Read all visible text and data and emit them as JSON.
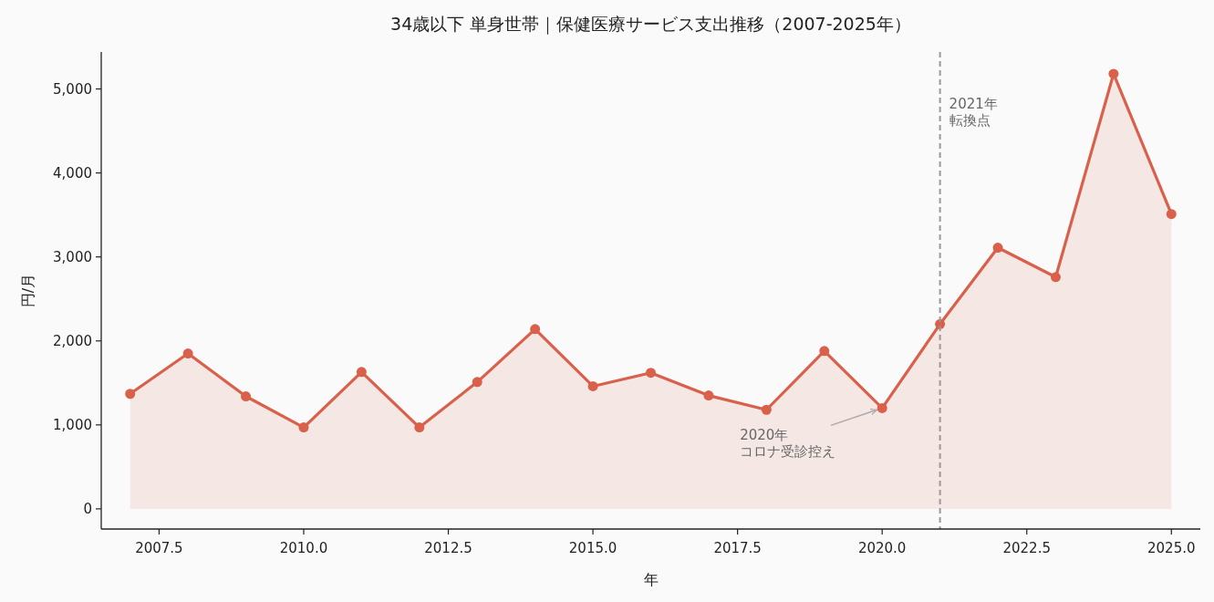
{
  "chart_data": {
    "type": "area",
    "title": "34歳以下 単身世帯｜保健医療サービス支出推移（2007-2025年）",
    "xlabel": "年",
    "ylabel": "円/月",
    "x": [
      2007,
      2008,
      2009,
      2010,
      2011,
      2012,
      2013,
      2014,
      2015,
      2016,
      2017,
      2018,
      2019,
      2020,
      2021,
      2022,
      2023,
      2024,
      2025
    ],
    "series": [
      {
        "color": "#d9604a",
        "values": [
          1370,
          1850,
          1340,
          970,
          1630,
          970,
          1510,
          2140,
          1460,
          1620,
          1350,
          1180,
          1880,
          1200,
          2200,
          3110,
          2760,
          5180,
          3510
        ]
      }
    ],
    "marker": "circle",
    "line_style": "solid",
    "xlim": [
      2006.5,
      2025.5
    ],
    "xticks": [
      2007.5,
      {
        "value": 2010,
        "label": "2010.0"
      },
      2012.5,
      {
        "value": 2015,
        "label": "2015.0"
      },
      2017.5,
      {
        "value": 2020,
        "label": "2020.0"
      },
      2022.5,
      {
        "value": 2025,
        "label": "2025.0"
      }
    ],
    "ylim": [
      -240,
      5440
    ],
    "yticks": [
      0,
      {
        "value": 1000,
        "label": "1,000"
      },
      {
        "value": 2000,
        "label": "2,000"
      },
      {
        "value": 3000,
        "label": "3,000"
      },
      {
        "value": 4000,
        "label": "4,000"
      },
      {
        "value": 5000,
        "label": "5,000"
      }
    ],
    "ref_lines": [
      {
        "axis": "x",
        "value": 2021,
        "label": "2021年転換点",
        "color": "#999999",
        "line_style": "dashed"
      }
    ],
    "annotations": [
      {
        "text": "2020年コロナ受診控え",
        "x": 2020,
        "y": 1200
      }
    ]
  }
}
